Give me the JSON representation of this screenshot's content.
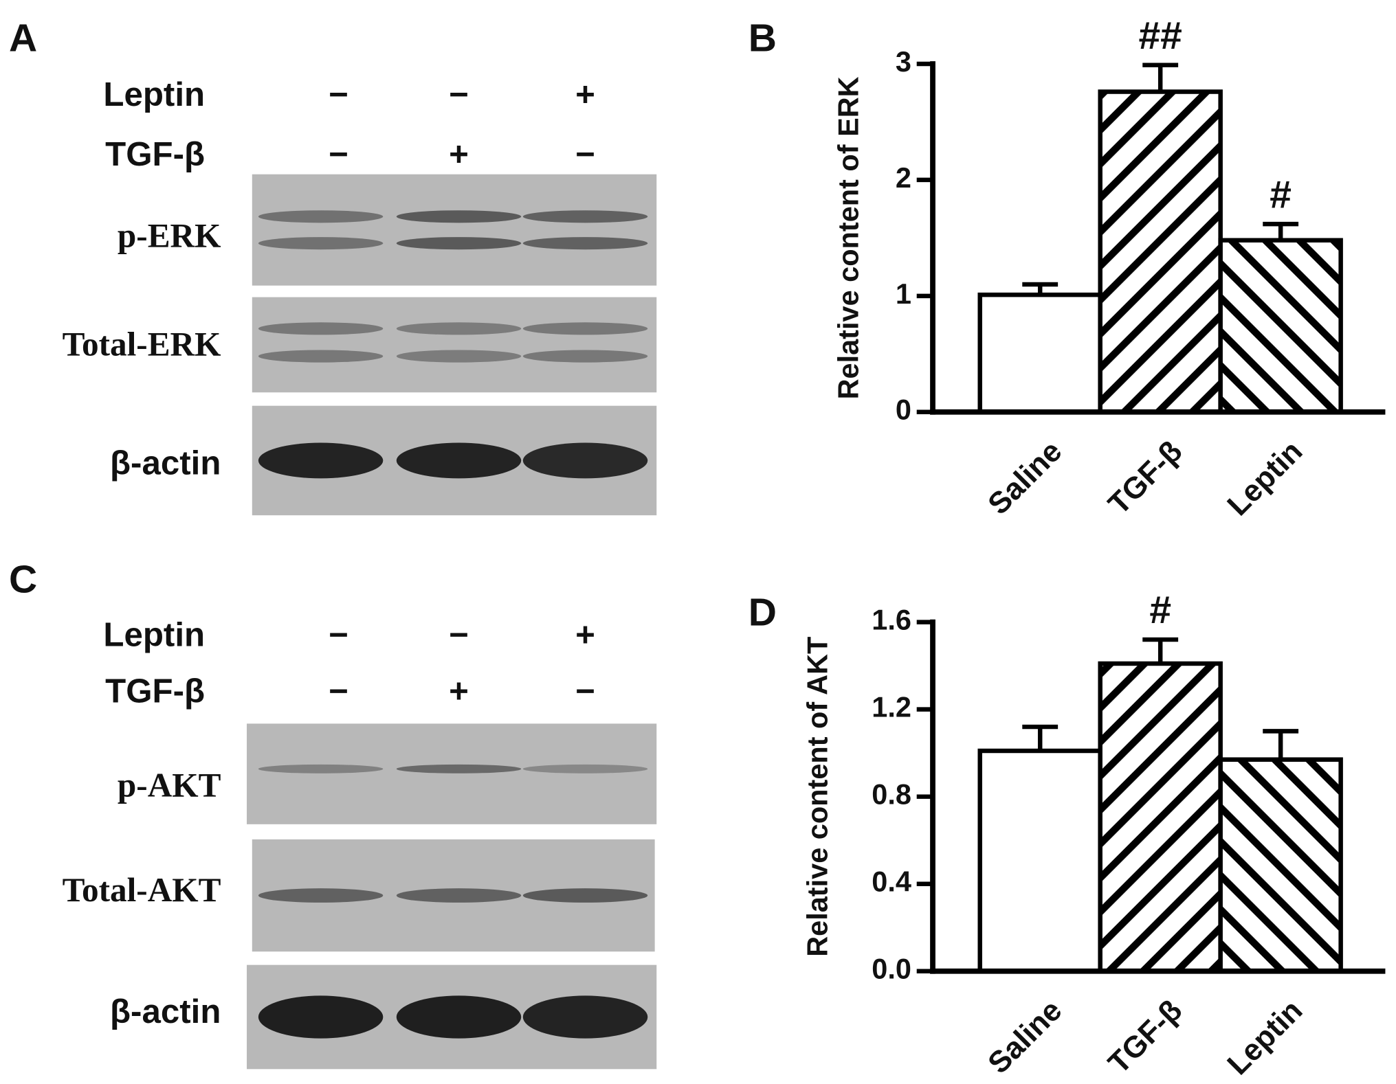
{
  "chart_data": [
    {
      "type": "bar",
      "panel": "B",
      "y_label": "Relative content of ERK",
      "categories": [
        "Saline",
        "TGF-β",
        "Leptin"
      ],
      "values": [
        1.01,
        2.76,
        1.48
      ],
      "errors": [
        0.09,
        0.23,
        0.14
      ],
      "annotations": [
        null,
        "##",
        "#"
      ],
      "patterns": [
        "none",
        "forward",
        "backward"
      ],
      "ylim": [
        0,
        3
      ],
      "yticks": [
        0,
        1,
        2,
        3
      ]
    },
    {
      "type": "bar",
      "panel": "D",
      "y_label": "Relative content of AKT",
      "categories": [
        "Saline",
        "TGF-β",
        "Leptin"
      ],
      "values": [
        1.01,
        1.41,
        0.97
      ],
      "errors": [
        0.11,
        0.11,
        0.13
      ],
      "annotations": [
        null,
        "#",
        null
      ],
      "patterns": [
        "none",
        "forward",
        "backward"
      ],
      "ylim": [
        0,
        1.6
      ],
      "yticks": [
        {
          "value": 0,
          "label": "0.0"
        },
        0.4,
        0.8,
        1.2,
        1.6
      ]
    }
  ],
  "blots": [
    {
      "panel": "A",
      "treatments": [
        {
          "label": "Leptin",
          "lanes": [
            "−",
            "−",
            "+"
          ]
        },
        {
          "label": "TGF-β",
          "lanes": [
            "−",
            "+",
            "−"
          ]
        }
      ],
      "bands": [
        "p-ERK",
        "Total-ERK",
        "β-actin"
      ]
    },
    {
      "panel": "C",
      "treatments": [
        {
          "label": "Leptin",
          "lanes": [
            "−",
            "−",
            "+"
          ]
        },
        {
          "label": "TGF-β",
          "lanes": [
            "−",
            "+",
            "−"
          ]
        }
      ],
      "bands": [
        "p-AKT",
        "Total-AKT",
        "β-actin"
      ]
    }
  ]
}
